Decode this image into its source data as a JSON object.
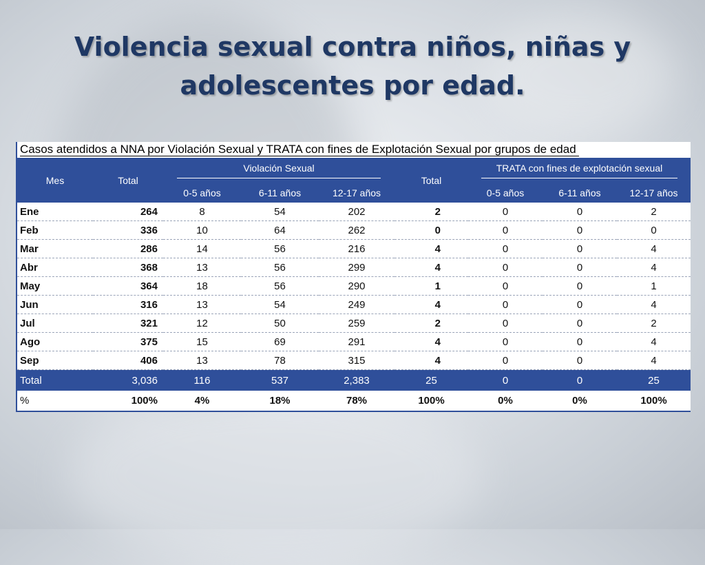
{
  "slide": {
    "title_line1": "Violencia sexual contra niños, niñas y",
    "title_line2": "adolescentes por edad."
  },
  "table": {
    "caption": "Casos atendidos a NNA por Violación Sexual y TRATA con fines de Explotación Sexual por grupos de edad",
    "headers": {
      "mes": "Mes",
      "total": "Total",
      "violacion_group": "Violación Sexual",
      "total2": "Total",
      "trata_group": "TRATA con fines de explotación sexual",
      "age_groups": [
        "0-5 años",
        "6-11 años",
        "12-17 años"
      ]
    },
    "rows": [
      {
        "mes": "Ene",
        "total": "264",
        "v": [
          "8",
          "54",
          "202"
        ],
        "tt": "2",
        "t": [
          "0",
          "0",
          "2"
        ]
      },
      {
        "mes": "Feb",
        "total": "336",
        "v": [
          "10",
          "64",
          "262"
        ],
        "tt": "0",
        "t": [
          "0",
          "0",
          "0"
        ]
      },
      {
        "mes": "Mar",
        "total": "286",
        "v": [
          "14",
          "56",
          "216"
        ],
        "tt": "4",
        "t": [
          "0",
          "0",
          "4"
        ]
      },
      {
        "mes": "Abr",
        "total": "368",
        "v": [
          "13",
          "56",
          "299"
        ],
        "tt": "4",
        "t": [
          "0",
          "0",
          "4"
        ]
      },
      {
        "mes": "May",
        "total": "364",
        "v": [
          "18",
          "56",
          "290"
        ],
        "tt": "1",
        "t": [
          "0",
          "0",
          "1"
        ]
      },
      {
        "mes": "Jun",
        "total": "316",
        "v": [
          "13",
          "54",
          "249"
        ],
        "tt": "4",
        "t": [
          "0",
          "0",
          "4"
        ]
      },
      {
        "mes": "Jul",
        "total": "321",
        "v": [
          "12",
          "50",
          "259"
        ],
        "tt": "2",
        "t": [
          "0",
          "0",
          "2"
        ]
      },
      {
        "mes": "Ago",
        "total": "375",
        "v": [
          "15",
          "69",
          "291"
        ],
        "tt": "4",
        "t": [
          "0",
          "0",
          "4"
        ]
      },
      {
        "mes": "Sep",
        "total": "406",
        "v": [
          "13",
          "78",
          "315"
        ],
        "tt": "4",
        "t": [
          "0",
          "0",
          "4"
        ]
      }
    ],
    "total_row": {
      "mes": "Total",
      "total": "3,036",
      "v": [
        "116",
        "537",
        "2,383"
      ],
      "tt": "25",
      "t": [
        "0",
        "0",
        "25"
      ]
    },
    "pct_row": {
      "mes": "%",
      "total": "100%",
      "v": [
        "4%",
        "18%",
        "78%"
      ],
      "tt": "100%",
      "t": [
        "0%",
        "0%",
        "100%"
      ]
    }
  }
}
